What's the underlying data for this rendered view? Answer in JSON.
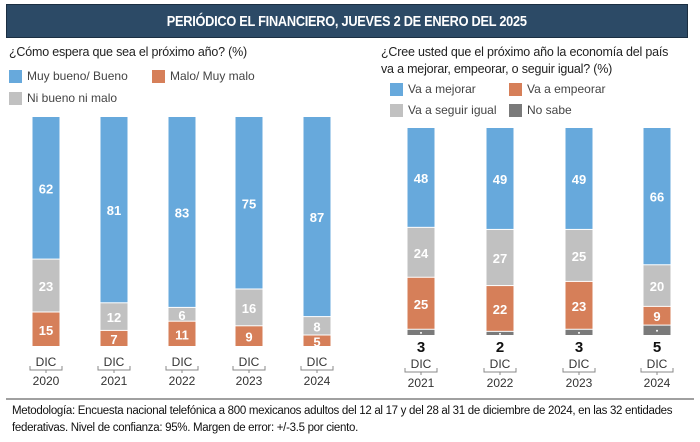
{
  "header": {
    "title": "PERIÓDICO EL FINANCIERO, JUEVES 2 DE ENERO DEL 2025"
  },
  "colors": {
    "header_bg": "#2c4a66",
    "blue": "#67a9dc",
    "orange": "#d67f59",
    "gray": "#c1c1c1",
    "darkgray": "#7a7a7a"
  },
  "chart_data": [
    {
      "type": "bar",
      "stacked": true,
      "title": "¿Cómo espera que sea el próximo año? (%)",
      "categories_top": [
        "DIC",
        "DIC",
        "DIC",
        "DIC",
        "DIC"
      ],
      "categories": [
        "2020",
        "2021",
        "2022",
        "2023",
        "2024"
      ],
      "ylim": [
        0,
        100
      ],
      "legend": [
        {
          "name": "Muy bueno/ Bueno",
          "color": "#67a9dc"
        },
        {
          "name": "Malo/ Muy malo",
          "color": "#d67f59"
        },
        {
          "name": "Ni bueno ni malo",
          "color": "#c1c1c1"
        }
      ],
      "series": [
        {
          "name": "Malo/ Muy malo",
          "color": "#d67f59",
          "values": [
            15,
            7,
            11,
            9,
            5
          ]
        },
        {
          "name": "Ni bueno ni malo",
          "color": "#c1c1c1",
          "values": [
            23,
            12,
            6,
            16,
            8
          ]
        },
        {
          "name": "Muy bueno/ Bueno",
          "color": "#67a9dc",
          "values": [
            62,
            81,
            83,
            75,
            87
          ]
        }
      ]
    },
    {
      "type": "bar",
      "stacked": true,
      "title_line1": "¿Cree usted que el próximo año la economía del país",
      "title_line2": "va a mejorar, empeorar, o seguir igual? (%)",
      "categories_top": [
        "DIC",
        "DIC",
        "DIC",
        "DIC"
      ],
      "categories": [
        "2021",
        "2022",
        "2023",
        "2024"
      ],
      "ylim": [
        0,
        100
      ],
      "legend": [
        {
          "name": "Va a mejorar",
          "color": "#67a9dc"
        },
        {
          "name": "Va a empeorar",
          "color": "#d67f59"
        },
        {
          "name": "Va a seguir igual",
          "color": "#c1c1c1"
        },
        {
          "name": "No sabe",
          "color": "#7a7a7a"
        }
      ],
      "series": [
        {
          "name": "No sabe",
          "color": "#7a7a7a",
          "values": [
            3,
            2,
            3,
            5
          ]
        },
        {
          "name": "Va a empeorar",
          "color": "#d67f59",
          "values": [
            25,
            22,
            23,
            9
          ]
        },
        {
          "name": "Va a seguir igual",
          "color": "#c1c1c1",
          "values": [
            24,
            27,
            25,
            20
          ]
        },
        {
          "name": "Va a mejorar",
          "color": "#67a9dc",
          "values": [
            48,
            49,
            49,
            66
          ]
        }
      ]
    }
  ],
  "footer": {
    "text": "Metodología: Encuesta nacional telefónica a 800 mexicanos adultos del 12 al 17 y del 28 al 31 de diciembre de 2024, en las 32 entidades federativas. Nivel de confianza: 95%. Margen de error: +/-3.5 por ciento."
  }
}
